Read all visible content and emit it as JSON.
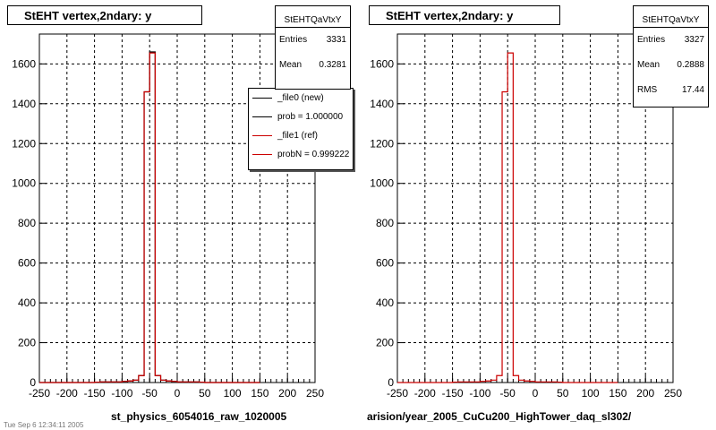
{
  "colors": {
    "new": "#000000",
    "ref": "#cc0000",
    "grid": "#000000"
  },
  "pads": [
    {
      "title": "StEHT  vertex,2ndary: y",
      "stats": {
        "name": "StEHTQaVtxY",
        "rows": [
          {
            "label": "Entries",
            "value": "3331"
          },
          {
            "label": "Mean",
            "value": "0.3281"
          }
        ]
      },
      "legend": [
        {
          "label": "_file0 (new)",
          "color": "#000000"
        },
        {
          "label": "prob = 1.000000",
          "color": "#000000"
        },
        {
          "label": "_file1 (ref)",
          "color": "#cc0000"
        },
        {
          "label": "probN = 0.999222",
          "color": "#cc0000"
        }
      ],
      "xlabel": "st_physics_6054016_raw_1020005"
    },
    {
      "title": "StEHT  vertex,2ndary: y",
      "stats": {
        "name": "StEHTQaVtxY",
        "rows": [
          {
            "label": "Entries",
            "value": "3327"
          },
          {
            "label": "Mean",
            "value": "0.2888"
          },
          {
            "label": "RMS",
            "value": "17.44"
          }
        ]
      },
      "xlabel": "arision/year_2005_CuCu200_HighTower_daq_sl302/"
    }
  ],
  "footer": "Tue Sep  6 12:34:11 2005",
  "chart_data": [
    {
      "type": "bar",
      "title": "StEHT  vertex,2ndary: y",
      "xlabel": "st_physics_6054016_raw_1020005",
      "xlim": [
        -250,
        250
      ],
      "ylim": [
        0,
        1750
      ],
      "xticks": [
        -250,
        -200,
        -150,
        -100,
        -50,
        0,
        50,
        100,
        150,
        200,
        250
      ],
      "yticks": [
        0,
        200,
        400,
        600,
        800,
        1000,
        1200,
        1400,
        1600
      ],
      "grid": true,
      "bin_edges_step": 10,
      "series": [
        {
          "name": "_file0 (new)",
          "values": [
            0,
            0,
            0,
            0,
            0,
            0,
            0,
            0,
            0,
            0,
            2,
            3,
            3,
            3,
            3,
            6,
            8,
            12,
            35,
            1460,
            1660,
            35,
            12,
            8,
            6,
            3,
            3,
            3,
            3,
            2,
            0,
            0,
            0,
            0,
            0,
            0,
            0,
            0,
            0,
            0
          ]
        },
        {
          "name": "_file1 (ref)",
          "values": [
            0,
            0,
            0,
            0,
            0,
            0,
            0,
            0,
            0,
            0,
            2,
            3,
            3,
            3,
            3,
            6,
            8,
            12,
            35,
            1460,
            1655,
            35,
            12,
            8,
            6,
            3,
            3,
            3,
            3,
            2,
            0,
            0,
            0,
            0,
            0,
            0,
            0,
            0,
            0,
            0
          ]
        }
      ]
    },
    {
      "type": "bar",
      "title": "StEHT  vertex,2ndary: y",
      "xlabel": "arision/year_2005_CuCu200_HighTower_daq_sl302/",
      "xlim": [
        -250,
        250
      ],
      "ylim": [
        0,
        1750
      ],
      "xticks": [
        -250,
        -200,
        -150,
        -100,
        -50,
        0,
        50,
        100,
        150,
        200,
        250
      ],
      "yticks": [
        0,
        200,
        400,
        600,
        800,
        1000,
        1200,
        1400,
        1600
      ],
      "grid": true,
      "bin_edges_step": 10,
      "series": [
        {
          "name": "_file1 (ref)",
          "values": [
            0,
            0,
            0,
            0,
            0,
            0,
            0,
            0,
            0,
            0,
            2,
            3,
            3,
            3,
            3,
            6,
            8,
            12,
            35,
            1460,
            1655,
            35,
            12,
            8,
            6,
            3,
            3,
            3,
            3,
            2,
            0,
            0,
            0,
            0,
            0,
            0,
            0,
            0,
            0,
            0
          ]
        }
      ]
    }
  ]
}
